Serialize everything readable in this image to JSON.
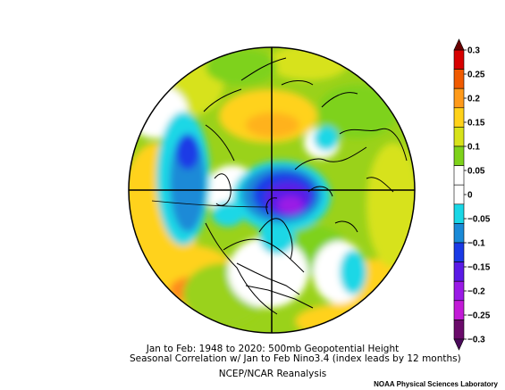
{
  "figure": {
    "caption_line1": "Jan to Feb: 1948 to 2020: 500mb Geopotential Height",
    "caption_line2": "Seasonal Correlation w/ Jan to Feb Nino3.4 (index leads by 12 months)",
    "caption_line3": "NCEP/NCAR Reanalysis",
    "credit": "NOAA Physical Sciences Laboratory"
  },
  "colorbar": {
    "tick_labels": [
      "0.3",
      "0.25",
      "0.2",
      "0.15",
      "0.1",
      "0.05",
      "0",
      "−0.05",
      "−0.1",
      "−0.15",
      "−0.2",
      "−0.25",
      "−0.3"
    ],
    "colors": [
      "#d70000",
      "#f05a00",
      "#ff9a1a",
      "#ffd21a",
      "#d7e21a",
      "#7ed21a",
      "#ffffff",
      "#ffffff",
      "#1ad7e6",
      "#1a8ad7",
      "#1a3ae6",
      "#5a1ae6",
      "#9a1ae6",
      "#c21ad7",
      "#6a0a6a"
    ],
    "arrow_top_color": "#6a0000",
    "arrow_bottom_color": "#4a0a5a"
  },
  "map": {
    "projection": "polar-stereographic",
    "background_color": "#9ad21a"
  }
}
